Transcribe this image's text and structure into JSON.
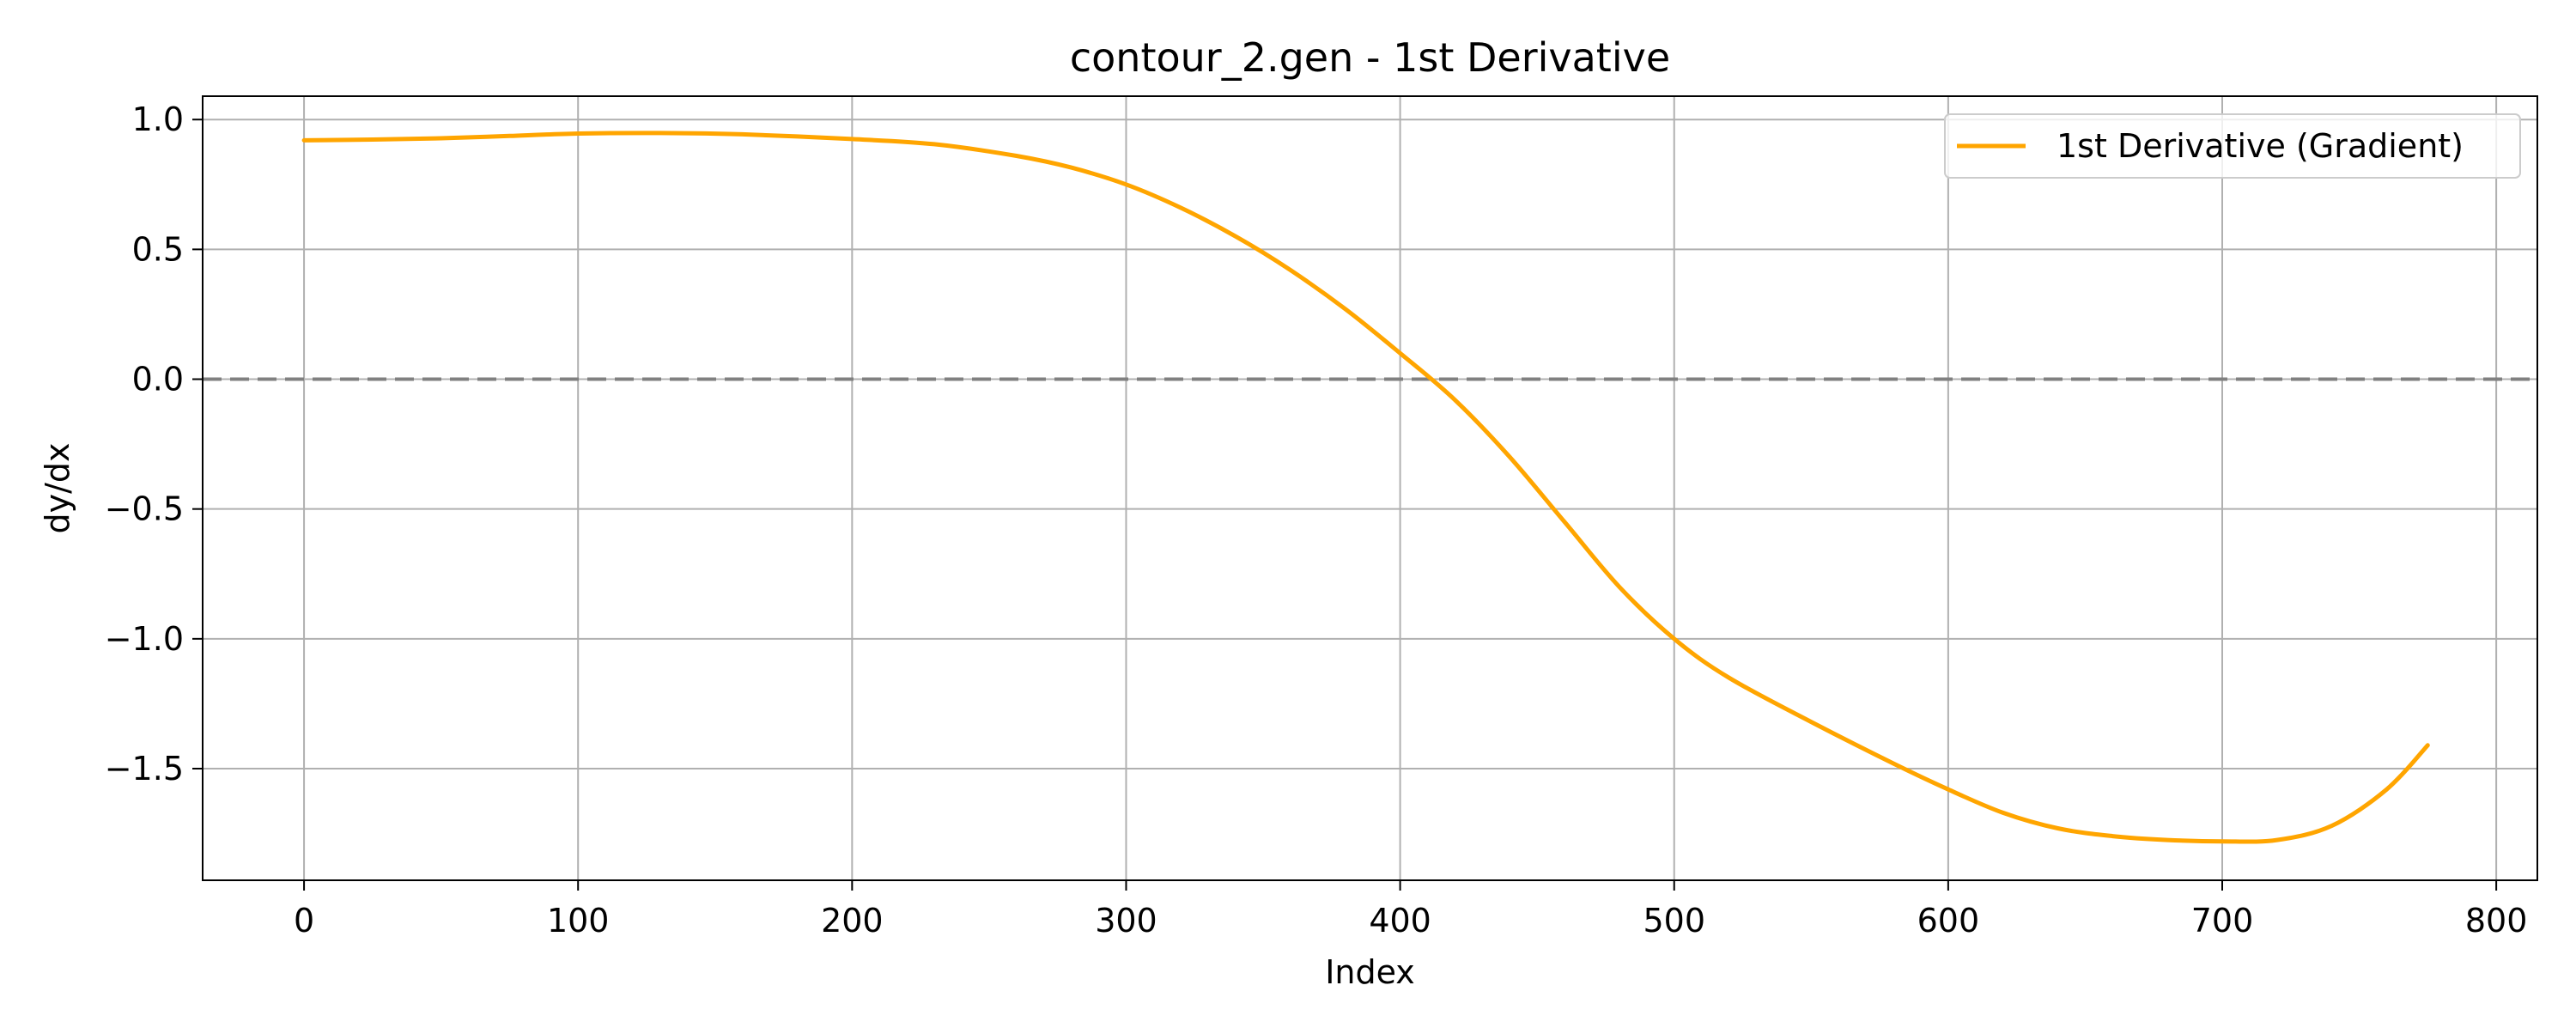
{
  "chart_data": {
    "type": "line",
    "title": "contour_2.gen - 1st Derivative",
    "xlabel": "Index",
    "ylabel": "dy/dx",
    "xlim": [
      -37,
      815
    ],
    "ylim": [
      -1.93,
      1.09
    ],
    "xticks": [
      0,
      100,
      200,
      300,
      400,
      500,
      600,
      700,
      800
    ],
    "xtick_labels": [
      "0",
      "100",
      "200",
      "300",
      "400",
      "500",
      "600",
      "700",
      "800"
    ],
    "yticks": [
      1.0,
      0.5,
      0.0,
      -0.5,
      -1.0,
      -1.5
    ],
    "ytick_labels": [
      "1.0",
      "0.5",
      "0.0",
      "−0.5",
      "−1.0",
      "−1.5"
    ],
    "grid": true,
    "legend_position": "top-right",
    "reference_line": {
      "y": 0,
      "style": "dashed",
      "color": "#808080"
    },
    "series": [
      {
        "name": "1st Derivative (Gradient)",
        "color": "#FFA500",
        "x": [
          0,
          25,
          50,
          75,
          100,
          130,
          160,
          200,
          230,
          260,
          280,
          300,
          320,
          340,
          360,
          380,
          400,
          420,
          440,
          460,
          480,
          500,
          520,
          550,
          580,
          600,
          620,
          640,
          660,
          680,
          700,
          720,
          740,
          760,
          775
        ],
        "y": [
          0.92,
          0.923,
          0.928,
          0.937,
          0.946,
          0.948,
          0.943,
          0.925,
          0.905,
          0.86,
          0.815,
          0.75,
          0.66,
          0.55,
          0.42,
          0.27,
          0.1,
          -0.08,
          -0.3,
          -0.55,
          -0.8,
          -1.0,
          -1.15,
          -1.32,
          -1.48,
          -1.58,
          -1.67,
          -1.73,
          -1.76,
          -1.775,
          -1.78,
          -1.775,
          -1.72,
          -1.58,
          -1.41
        ]
      }
    ]
  }
}
